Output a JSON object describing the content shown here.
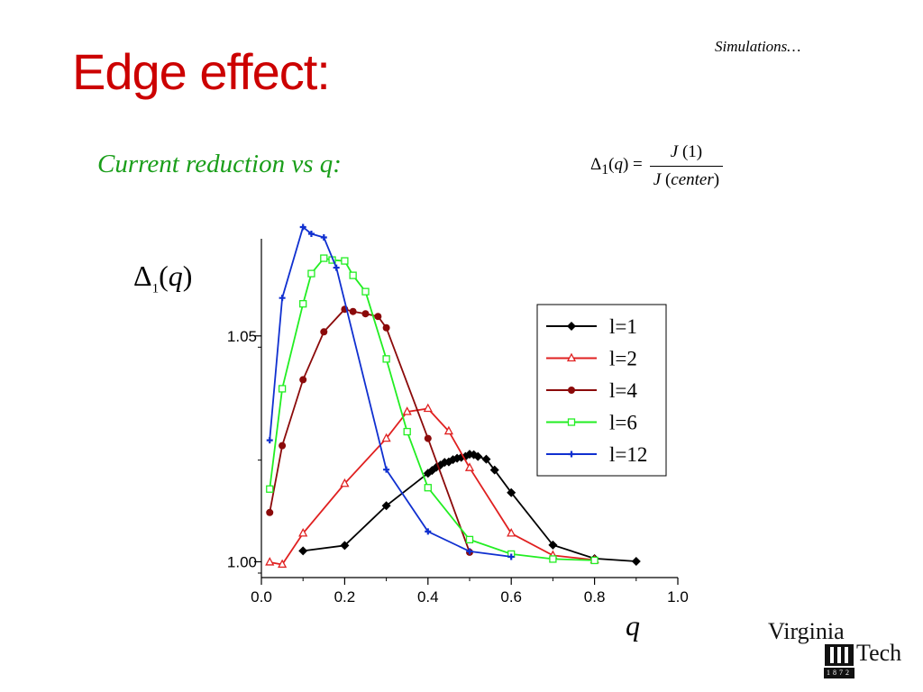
{
  "slide": {
    "title": "Edge effect:",
    "section_tag": "Simulations…",
    "subtitle": "Current reduction vs q:"
  },
  "formula": {
    "lhs_symbol": "Δ",
    "lhs_sub": "1",
    "lhs_arg": "q",
    "numerator_fn": "J",
    "numerator_arg": "(1)",
    "denominator_fn": "J",
    "denominator_arg": "center"
  },
  "chart_labels": {
    "y_symbol": "Δ",
    "y_sub": "1",
    "y_arg": "q",
    "x_label": "q"
  },
  "logo": {
    "line1": "Virginia",
    "line2": "Tech",
    "year": "1872"
  },
  "chart_data": {
    "type": "line",
    "xlabel": "q",
    "ylabel": "Δ1(q)",
    "xlim": [
      0.0,
      1.0
    ],
    "ylim": [
      0.9965,
      1.0715
    ],
    "x_ticks": [
      "0.0",
      "0.2",
      "0.4",
      "0.6",
      "0.8",
      "1.0"
    ],
    "y_ticks": [
      "1.00",
      "1.05"
    ],
    "grid": false,
    "legend_position": "right",
    "series": [
      {
        "name": "l=1",
        "color": "#000000",
        "marker": "diamond",
        "x": [
          0.1,
          0.2,
          0.3,
          0.4,
          0.41,
          0.42,
          0.43,
          0.44,
          0.45,
          0.46,
          0.47,
          0.48,
          0.49,
          0.5,
          0.51,
          0.52,
          0.54,
          0.56,
          0.6,
          0.7,
          0.8,
          0.9
        ],
        "y": [
          1.0024,
          1.0036,
          1.0124,
          1.0196,
          1.0202,
          1.0209,
          1.0214,
          1.022,
          1.0221,
          1.0226,
          1.0229,
          1.0231,
          1.0233,
          1.0238,
          1.0237,
          1.0233,
          1.0227,
          1.0203,
          1.0153,
          1.0037,
          1.0007,
          1.0001
        ]
      },
      {
        "name": "l=2",
        "color": "#e02020",
        "marker": "triangle",
        "x": [
          0.02,
          0.05,
          0.1,
          0.2,
          0.3,
          0.35,
          0.4,
          0.45,
          0.5,
          0.6,
          0.7,
          0.8
        ],
        "y": [
          0.9999,
          0.9994,
          1.0063,
          1.0173,
          1.0273,
          1.0332,
          1.0339,
          1.0289,
          1.0208,
          1.0063,
          1.0014,
          1.0004
        ]
      },
      {
        "name": "l=4",
        "color": "#8b0a0a",
        "marker": "circle",
        "x": [
          0.02,
          0.05,
          0.1,
          0.15,
          0.2,
          0.22,
          0.25,
          0.28,
          0.3,
          0.4,
          0.5
        ],
        "y": [
          1.0109,
          1.0257,
          1.0403,
          1.0509,
          1.0559,
          1.0554,
          1.0549,
          1.0543,
          1.0518,
          1.0273,
          1.0021
        ]
      },
      {
        "name": "l=6",
        "color": "#22ee22",
        "marker": "square",
        "x": [
          0.02,
          0.05,
          0.1,
          0.12,
          0.15,
          0.17,
          0.2,
          0.22,
          0.25,
          0.3,
          0.35,
          0.4,
          0.5,
          0.6,
          0.7,
          0.8
        ],
        "y": [
          1.0161,
          1.0383,
          1.0571,
          1.0638,
          1.0672,
          1.0668,
          1.0666,
          1.0634,
          1.0598,
          1.0449,
          1.0288,
          1.0164,
          1.0049,
          1.0017,
          1.0006,
          1.0003
        ]
      },
      {
        "name": "l=12",
        "color": "#1030d0",
        "marker": "plus",
        "x": [
          0.02,
          0.05,
          0.1,
          0.12,
          0.15,
          0.18,
          0.3,
          0.4,
          0.5,
          0.6
        ],
        "y": [
          1.0269,
          1.0584,
          1.0741,
          1.0726,
          1.0718,
          1.0651,
          1.0204,
          1.0067,
          1.0023,
          1.0011
        ]
      }
    ]
  }
}
